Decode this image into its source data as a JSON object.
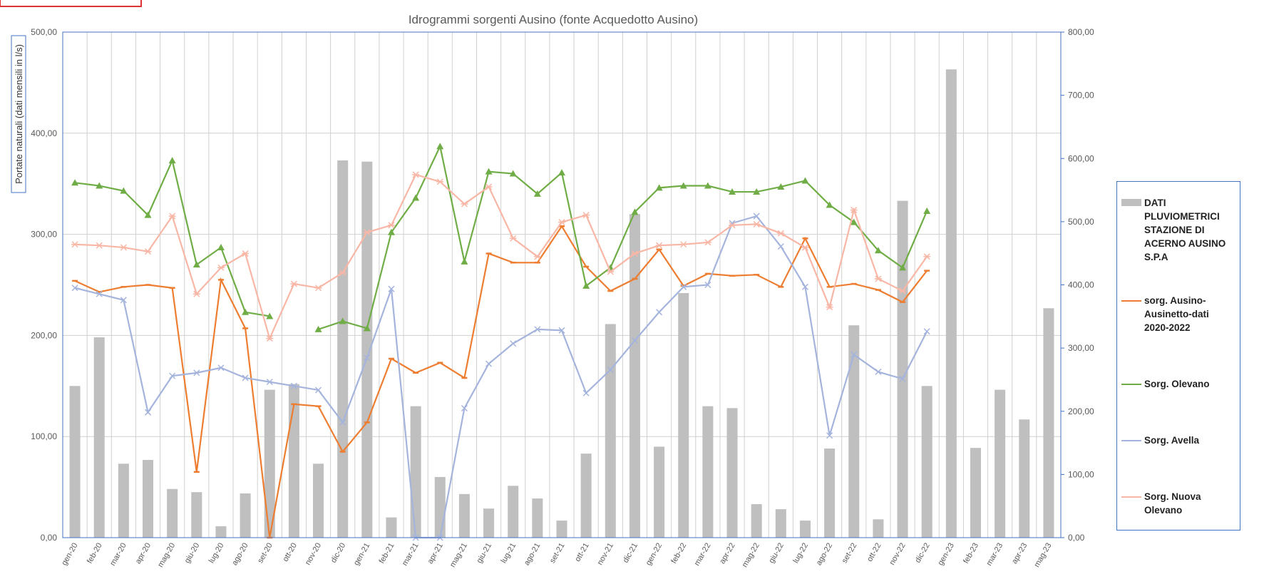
{
  "chart_data": {
    "type": "bar-line",
    "title": "Idrogrammi sorgenti Ausino (fonte Acquedotto Ausino)",
    "y_label": "Portate naturali (dati mensili in l/s)",
    "categories": [
      "gen-20",
      "feb-20",
      "mar-20",
      "apr-20",
      "mag-20",
      "giu-20",
      "lug-20",
      "ago-20",
      "set-20",
      "ott-20",
      "nov-20",
      "dic-20",
      "gen-21",
      "feb-21",
      "mar-21",
      "apr-21",
      "mag-21",
      "giu-21",
      "lug-21",
      "ago-21",
      "set-21",
      "ott-21",
      "nov-21",
      "dic-21",
      "gen-22",
      "feb-22",
      "mar-22",
      "apr-22",
      "mag-22",
      "giu-22",
      "lug-22",
      "ago-22",
      "set-22",
      "ott-22",
      "nov-22",
      "dic-22",
      "gen-23",
      "feb-23",
      "mar-23",
      "apr-23",
      "mag-23"
    ],
    "ylim": [
      0,
      500
    ],
    "yticks": [
      {
        "value": 0,
        "label": "0,00"
      },
      {
        "value": 100,
        "label": "100,00"
      },
      {
        "value": 200,
        "label": "200,00"
      },
      {
        "value": 300,
        "label": "300,00"
      },
      {
        "value": 400,
        "label": "400,00"
      },
      {
        "value": 500,
        "label": "500,00"
      }
    ],
    "y2lim": [
      0,
      800
    ],
    "y2ticks": [
      {
        "value": 0,
        "label": "0,00"
      },
      {
        "value": 100,
        "label": "100,00"
      },
      {
        "value": 200,
        "label": "200,00"
      },
      {
        "value": 300,
        "label": "300,00"
      },
      {
        "value": 400,
        "label": "400,00"
      },
      {
        "value": 500,
        "label": "500,00"
      },
      {
        "value": 600,
        "label": "600,00"
      },
      {
        "value": 700,
        "label": "700,00"
      },
      {
        "value": 800,
        "label": "800,00"
      }
    ],
    "grid": true,
    "legend": "right",
    "series": [
      {
        "name": "DATI PLUVIOMETRICI STAZIONE DI ACERNO AUSINO S.P.A",
        "kind": "bar",
        "axis": "y2",
        "color": "#bfbfbf",
        "values": [
          240,
          317,
          117,
          123,
          77,
          72,
          18,
          70,
          234,
          243,
          117,
          597,
          595,
          32,
          208,
          96,
          69,
          46,
          82,
          62,
          27,
          133,
          338,
          512,
          144,
          387,
          208,
          205,
          53,
          45,
          27,
          141,
          336,
          29,
          533,
          240,
          741,
          142,
          234,
          187,
          363
        ]
      },
      {
        "name": "sorg. Ausino-Ausinetto-dati 2020-2022",
        "kind": "line",
        "marker": "dash",
        "color": "#ed7d31",
        "values": [
          254,
          243,
          248,
          250,
          247,
          65,
          255,
          207,
          0,
          132,
          130,
          85,
          114,
          177,
          163,
          173,
          158,
          281,
          272,
          272,
          308,
          268,
          244,
          256,
          285,
          249,
          261,
          259,
          260,
          248,
          296,
          248,
          251,
          245,
          233,
          264,
          null,
          null,
          null,
          null,
          null
        ]
      },
      {
        "name": "Sorg. Olevano",
        "kind": "line",
        "marker": "triangle",
        "color": "#70ad47",
        "values": [
          351,
          348,
          343,
          319,
          373,
          270,
          287,
          223,
          219,
          null,
          206,
          214,
          207,
          302,
          336,
          387,
          273,
          362,
          360,
          340,
          361,
          249,
          267,
          322,
          346,
          348,
          348,
          342,
          342,
          347,
          353,
          329,
          312,
          284,
          267,
          323,
          null,
          null,
          null,
          null,
          null
        ]
      },
      {
        "name": "Sorg. Avella",
        "kind": "line",
        "marker": "x",
        "color": "#a5b4dc",
        "values": [
          247,
          241,
          235,
          124,
          160,
          163,
          168,
          158,
          154,
          150,
          146,
          114,
          178,
          246,
          0,
          0,
          128,
          172,
          192,
          206,
          205,
          143,
          166,
          195,
          223,
          248,
          250,
          311,
          318,
          288,
          248,
          101,
          181,
          164,
          157,
          204,
          null,
          null,
          null,
          null,
          null
        ]
      },
      {
        "name": "Sorg. Nuova Olevano",
        "kind": "line",
        "marker": "star",
        "color": "#f8b7a6",
        "values": [
          290,
          289,
          287,
          283,
          318,
          241,
          267,
          281,
          197,
          251,
          247,
          262,
          302,
          309,
          359,
          352,
          330,
          347,
          296,
          278,
          312,
          319,
          263,
          281,
          289,
          290,
          292,
          309,
          310,
          301,
          287,
          228,
          324,
          256,
          244,
          278,
          null,
          null,
          null,
          null,
          null
        ]
      }
    ]
  }
}
